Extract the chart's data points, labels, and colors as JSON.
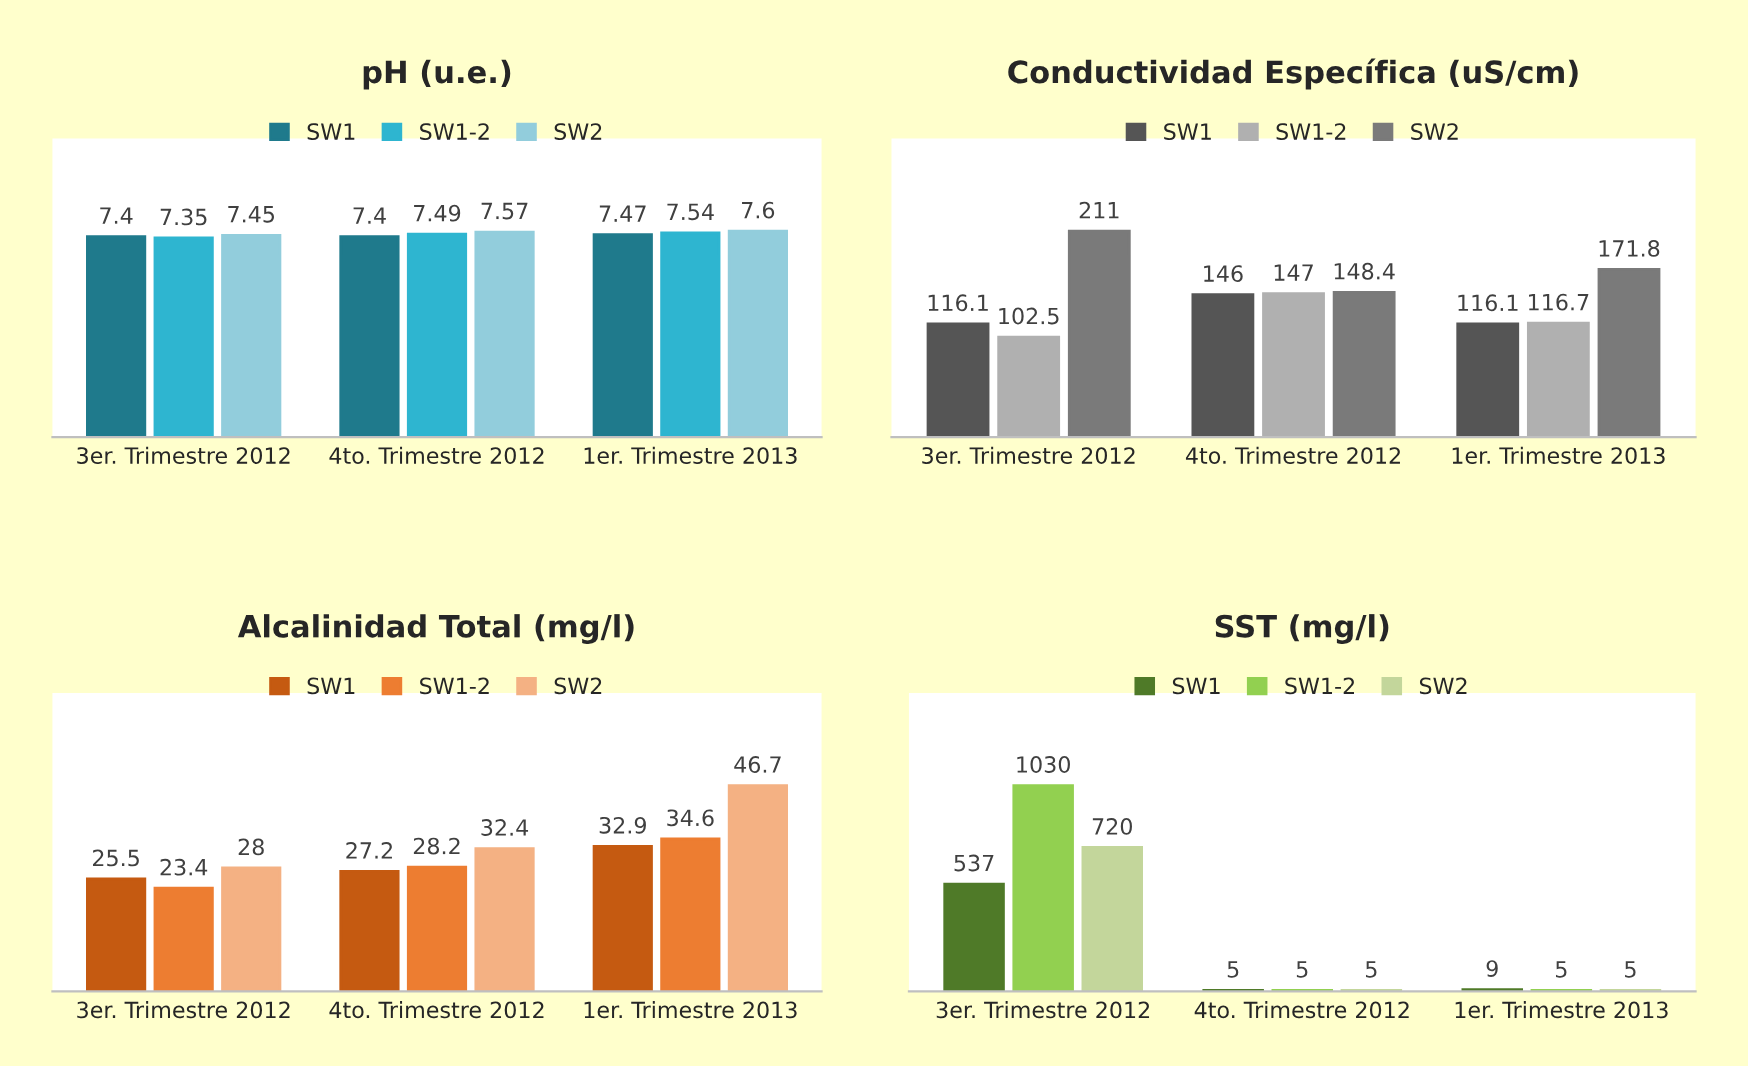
{
  "chart_data": [
    {
      "type": "bar",
      "title": "pH (u.e.)",
      "categories": [
        "3er. Trimestre 2012",
        "4to. Trimestre 2012",
        "1er. Trimestre 2013"
      ],
      "legend": "top",
      "data_labels": true,
      "series": [
        {
          "name": "SW1",
          "color": "#1f7a8c",
          "values": [
            7.4,
            7.4,
            7.47
          ]
        },
        {
          "name": "SW1-2",
          "color": "#2eb5d0",
          "values": [
            7.35,
            7.49,
            7.54
          ]
        },
        {
          "name": "SW2",
          "color": "#92cddc",
          "values": [
            7.45,
            7.57,
            7.6
          ]
        }
      ]
    },
    {
      "type": "bar",
      "title": "Conductividad Específica (uS/cm)",
      "categories": [
        "3er. Trimestre 2012",
        "4to. Trimestre 2012",
        "1er. Trimestre 2013"
      ],
      "legend": "top",
      "data_labels": true,
      "series": [
        {
          "name": "SW1",
          "color": "#555555",
          "values": [
            116.1,
            146,
            116.1
          ]
        },
        {
          "name": "SW1-2",
          "color": "#b0b0b0",
          "values": [
            102.5,
            147,
            116.7
          ]
        },
        {
          "name": "SW2",
          "color": "#7a7a7a",
          "values": [
            211,
            148.4,
            171.8
          ]
        }
      ]
    },
    {
      "type": "bar",
      "title": "Alcalinidad Total (mg/l)",
      "categories": [
        "3er. Trimestre 2012",
        "4to. Trimestre 2012",
        "1er. Trimestre 2013"
      ],
      "legend": "top",
      "data_labels": true,
      "series": [
        {
          "name": "SW1",
          "color": "#c55a11",
          "values": [
            25.5,
            27.2,
            32.9
          ]
        },
        {
          "name": "SW1-2",
          "color": "#ed7d31",
          "values": [
            23.4,
            28.2,
            34.6
          ]
        },
        {
          "name": "SW2",
          "color": "#f4b183",
          "values": [
            28,
            32.4,
            46.7
          ]
        }
      ]
    },
    {
      "type": "bar",
      "title": "SST (mg/l)",
      "categories": [
        "3er. Trimestre 2012",
        "4to. Trimestre 2012",
        "1er. Trimestre 2013"
      ],
      "legend": "top",
      "data_labels": true,
      "series": [
        {
          "name": "SW1",
          "color": "#4f7a28",
          "values": [
            537,
            5,
            9
          ]
        },
        {
          "name": "SW1-2",
          "color": "#92d050",
          "values": [
            1030,
            5,
            5
          ]
        },
        {
          "name": "SW2",
          "color": "#c3d69b",
          "values": [
            720,
            5,
            5
          ]
        }
      ]
    }
  ]
}
